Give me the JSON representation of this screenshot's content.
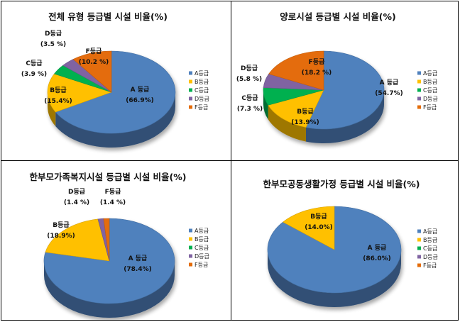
{
  "legend_labels": [
    "A등급",
    "B등급",
    "C등급",
    "D등급",
    "F등급"
  ],
  "colors": [
    "#4F81BD",
    "#FFC000",
    "#00B050",
    "#8064A2",
    "#E46C0A"
  ],
  "chart_data": [
    {
      "type": "pie",
      "title": "전체 유형 등급별 시설 비율(%)",
      "categories": [
        "A등급",
        "B등급",
        "C등급",
        "D등급",
        "F등급"
      ],
      "values": [
        66.9,
        15.4,
        3.9,
        3.5,
        10.2
      ],
      "labels": [
        {
          "name": "A 등급",
          "value": "(66.9%)"
        },
        {
          "name": "B등급",
          "value": "(15.4%)"
        },
        {
          "name": "C등급",
          "value": "(3.9 %)"
        },
        {
          "name": "D등급",
          "value": "(3.5 %)"
        },
        {
          "name": "F등급",
          "value": "(10.2 %)"
        }
      ],
      "legend": "right"
    },
    {
      "type": "pie",
      "title": "양로시설 등급별 시설 비율(%)",
      "categories": [
        "A등급",
        "B등급",
        "C등급",
        "D등급",
        "F등급"
      ],
      "values": [
        54.7,
        13.9,
        7.3,
        5.8,
        18.2
      ],
      "labels": [
        {
          "name": "A 등급",
          "value": "(54.7%)"
        },
        {
          "name": "B등급",
          "value": "(13.9%)"
        },
        {
          "name": "C등급",
          "value": "(7.3 %)"
        },
        {
          "name": "D등급",
          "value": "(5.8 %)"
        },
        {
          "name": "F등급",
          "value": "(18.2 %)"
        }
      ],
      "legend": "right"
    },
    {
      "type": "pie",
      "title": "한부모가족복지시설 등급별 시설 비율(%)",
      "categories": [
        "A등급",
        "B등급",
        "C등급",
        "D등급",
        "F등급"
      ],
      "values": [
        78.4,
        18.9,
        0,
        1.4,
        1.4
      ],
      "labels": [
        {
          "name": "A 등급",
          "value": "(78.4%)"
        },
        {
          "name": "B등급",
          "value": "(18.9%)"
        },
        {
          "name": "",
          "value": ""
        },
        {
          "name": "D등급",
          "value": "(1.4 %)"
        },
        {
          "name": "F등급",
          "value": "(1.4 %)"
        }
      ],
      "legend": "right"
    },
    {
      "type": "pie",
      "title": "한부모공동생활가정 등급별 시설 비율(%)",
      "categories": [
        "A등급",
        "B등급",
        "C등급",
        "D등급",
        "F등급"
      ],
      "values": [
        86.0,
        14.0,
        0,
        0,
        0
      ],
      "labels": [
        {
          "name": "A 등급",
          "value": "(86.0%)"
        },
        {
          "name": "B등급",
          "value": "(14.0%)"
        },
        {
          "name": "",
          "value": ""
        },
        {
          "name": "",
          "value": ""
        },
        {
          "name": "",
          "value": ""
        }
      ],
      "legend": "right"
    }
  ]
}
